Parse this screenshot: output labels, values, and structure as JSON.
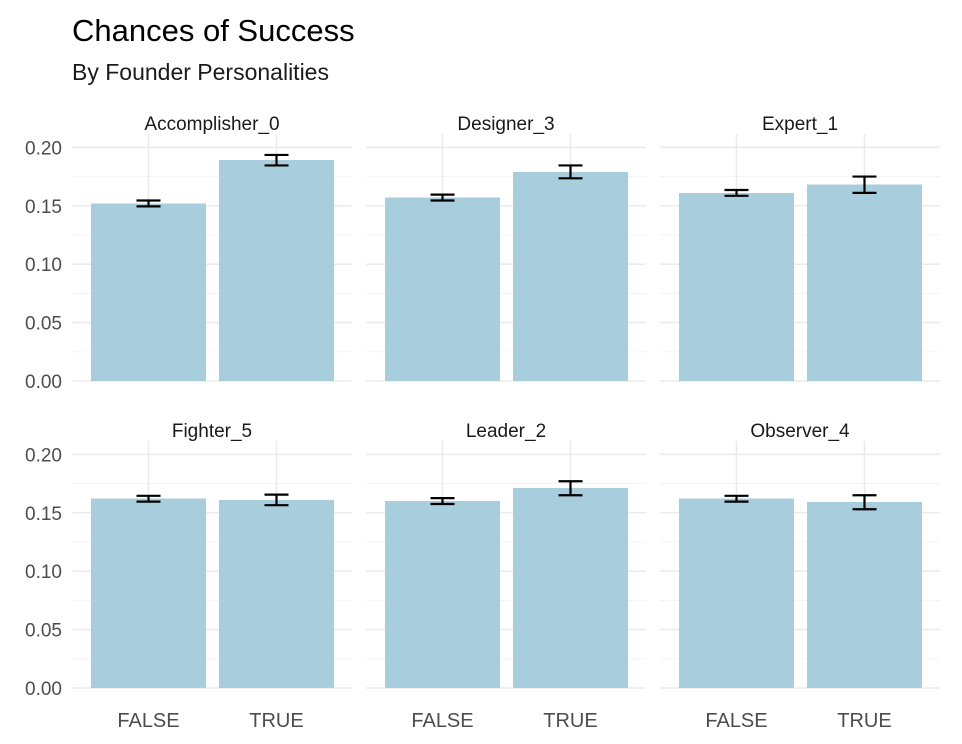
{
  "chart_data": {
    "type": "bar",
    "title": "Chances of Success",
    "subtitle": "By Founder Personalities",
    "xlabel": "",
    "ylabel": "",
    "ylim": [
      0,
      0.2
    ],
    "yticks": [
      "0.00",
      "0.05",
      "0.10",
      "0.15",
      "0.20"
    ],
    "categories": [
      "FALSE",
      "TRUE"
    ],
    "bar_color": "#a8cddd",
    "facets": [
      {
        "name": "Accomplisher_0",
        "values": [
          0.152,
          0.189
        ],
        "errors": [
          0.0025,
          0.0045
        ]
      },
      {
        "name": "Designer_3",
        "values": [
          0.157,
          0.179
        ],
        "errors": [
          0.0025,
          0.0055
        ]
      },
      {
        "name": "Expert_1",
        "values": [
          0.161,
          0.168
        ],
        "errors": [
          0.0025,
          0.007
        ]
      },
      {
        "name": "Fighter_5",
        "values": [
          0.162,
          0.161
        ],
        "errors": [
          0.0025,
          0.0045
        ]
      },
      {
        "name": "Leader_2",
        "values": [
          0.16,
          0.171
        ],
        "errors": [
          0.0025,
          0.006
        ]
      },
      {
        "name": "Observer_4",
        "values": [
          0.162,
          0.159
        ],
        "errors": [
          0.0025,
          0.006
        ]
      }
    ]
  }
}
